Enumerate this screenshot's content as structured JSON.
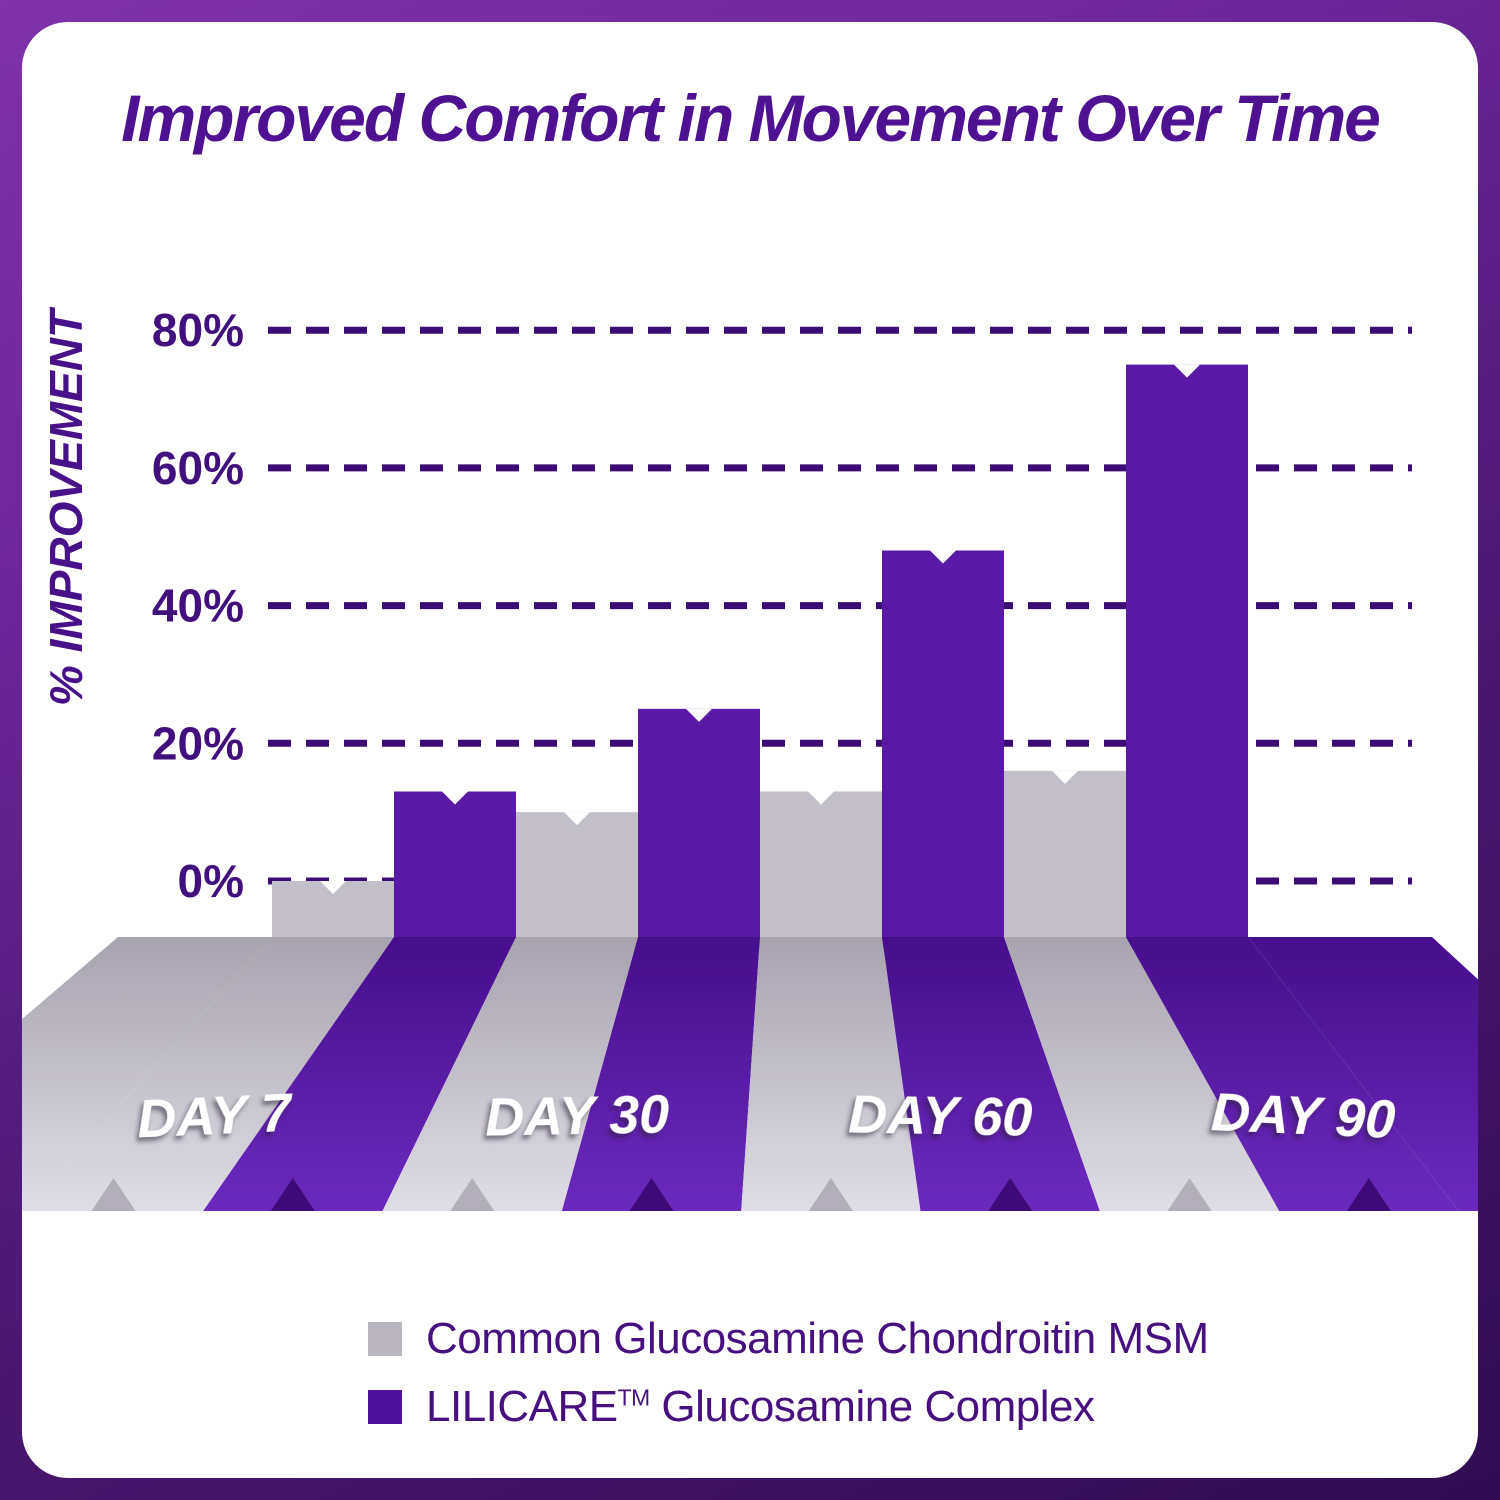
{
  "title": {
    "text": "Improved Comfort in Movement Over Time"
  },
  "axis": {
    "ylabel": "% IMPROVEMENT",
    "yticks": [
      {
        "label": "80%",
        "value": 80
      },
      {
        "label": "60%",
        "value": 60
      },
      {
        "label": "40%",
        "value": 40
      },
      {
        "label": "20%",
        "value": 20
      },
      {
        "label": "0%",
        "value": 0
      }
    ]
  },
  "chart_data": {
    "type": "bar",
    "title": "Improved Comfort in Movement Over Time",
    "categories": [
      "DAY 7",
      "DAY 30",
      "DAY 60",
      "DAY 90"
    ],
    "series": [
      {
        "name": "Common Glucosamine Chondroitin MSM",
        "values": [
          0,
          10,
          13,
          16
        ]
      },
      {
        "name": "LILICARE™ Glucosamine Complex",
        "values": [
          13,
          25,
          48,
          75
        ]
      }
    ],
    "xlabel": "",
    "ylabel": "% IMPROVEMENT",
    "ylim": [
      0,
      85
    ],
    "grid": "dashed-horizontal",
    "legend_position": "bottom",
    "style": "pseudo-3d-striped-floor"
  },
  "legend": {
    "items": [
      {
        "label": "Common Glucosamine Chondroitin MSM"
      },
      {
        "brand": "LILICARE",
        "tm": "TM",
        "rest": " Glucosamine Complex"
      }
    ]
  },
  "colors": {
    "frame_gradient_top": "#8133A9",
    "frame_gradient_bottom": "#2E0D52",
    "card_bg": "#FFFFFF",
    "title_text": "#4E1191",
    "tick_text": "#42107C",
    "ylabel_text": "#471287",
    "gridline": "#3A0C74",
    "wall_gray": "#C2BFC9",
    "wall_purple": "#5A18A6",
    "floor_gray_back": "#A7A3AF",
    "floor_gray_front": "#DFDDE5",
    "floor_purple_back": "#470E8C",
    "floor_purple_front": "#6B29BE",
    "notch_gray": "#B2AEBA",
    "notch_purple": "#3D0B77",
    "day_label_text": "#FFFFFF",
    "legend_text": "#46117E",
    "legend_swatch_gray": "#BAB6C0",
    "legend_swatch_purple": "#4E129F"
  }
}
